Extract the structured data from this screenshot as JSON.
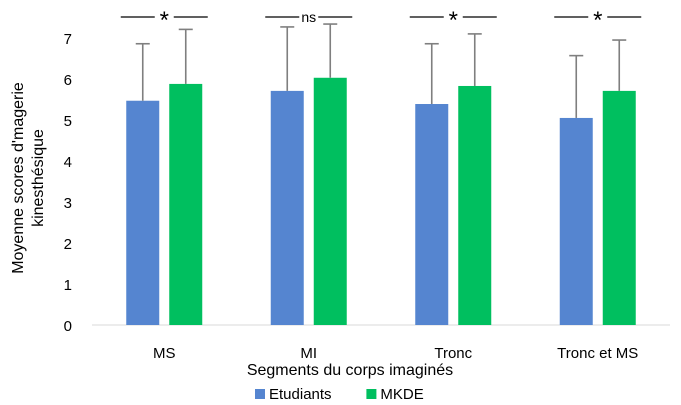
{
  "chart_data": {
    "type": "bar",
    "categories": [
      "MS",
      "MI",
      "Tronc",
      "Tronc et MS"
    ],
    "series": [
      {
        "name": "Etudiants",
        "color": "#5585d0",
        "values": [
          5.47,
          5.71,
          5.39,
          5.05
        ],
        "error": [
          1.39,
          1.56,
          1.47,
          1.52
        ]
      },
      {
        "name": "MKDE",
        "color": "#00bf5f",
        "values": [
          5.88,
          6.03,
          5.83,
          5.71
        ],
        "error": [
          1.33,
          1.31,
          1.27,
          1.24
        ]
      }
    ],
    "annotations": [
      "*",
      "ns",
      "*",
      "*"
    ],
    "xlabel": "Segments du corps imaginés",
    "ylabel": [
      "Moyenne scores d'magerie",
      "kinesthésique"
    ],
    "ylim": [
      0,
      7
    ],
    "yticks": [
      "0",
      "1",
      "2",
      "3",
      "4",
      "5",
      "6",
      "7"
    ],
    "grid": false,
    "legend_position": "bottom"
  }
}
